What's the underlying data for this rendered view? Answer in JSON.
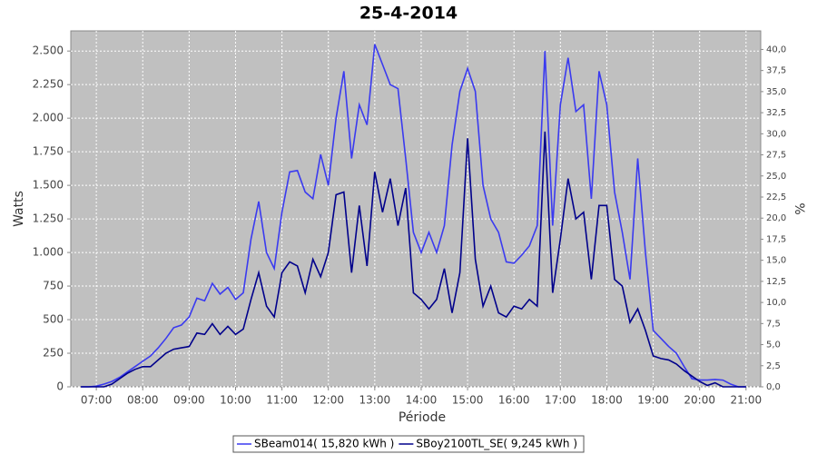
{
  "chart_data": {
    "type": "line",
    "title": "25-4-2014",
    "x_label": "Période",
    "y_label": "Watts",
    "y2_label": "%",
    "x": [
      "06:40",
      "06:50",
      "07:00",
      "07:10",
      "07:20",
      "07:30",
      "07:40",
      "07:50",
      "08:00",
      "08:10",
      "08:20",
      "08:30",
      "08:40",
      "08:50",
      "09:00",
      "09:10",
      "09:20",
      "09:30",
      "09:40",
      "09:50",
      "10:00",
      "10:10",
      "10:20",
      "10:30",
      "10:40",
      "10:50",
      "11:00",
      "11:10",
      "11:20",
      "11:30",
      "11:40",
      "11:50",
      "12:00",
      "12:10",
      "12:20",
      "12:30",
      "12:40",
      "12:50",
      "13:00",
      "13:10",
      "13:20",
      "13:30",
      "13:40",
      "13:50",
      "14:00",
      "14:10",
      "14:20",
      "14:30",
      "14:40",
      "14:50",
      "15:00",
      "15:10",
      "15:20",
      "15:30",
      "15:40",
      "15:50",
      "16:00",
      "16:10",
      "16:20",
      "16:30",
      "16:40",
      "16:50",
      "17:00",
      "17:10",
      "17:20",
      "17:30",
      "17:40",
      "17:50",
      "18:00",
      "18:10",
      "18:20",
      "18:30",
      "18:40",
      "18:50",
      "19:00",
      "19:10",
      "19:20",
      "19:30",
      "19:40",
      "19:50",
      "20:00",
      "20:10",
      "20:20",
      "20:30",
      "20:40",
      "20:50",
      "21:00"
    ],
    "series": [
      {
        "name": "SBeam014( 15,820 kWh )",
        "color": "#3a3af0",
        "values": [
          0,
          0,
          5,
          20,
          40,
          70,
          110,
          150,
          190,
          230,
          290,
          360,
          440,
          460,
          520,
          660,
          640,
          770,
          690,
          740,
          650,
          700,
          1100,
          1380,
          1000,
          880,
          1300,
          1600,
          1610,
          1450,
          1400,
          1730,
          1500,
          2000,
          2350,
          1700,
          2100,
          1950,
          2550,
          2400,
          2250,
          2220,
          1700,
          1150,
          1000,
          1150,
          1000,
          1200,
          1800,
          2200,
          2370,
          2200,
          1500,
          1250,
          1150,
          930,
          920,
          980,
          1050,
          1200,
          2500,
          1200,
          2100,
          2450,
          2050,
          2100,
          1400,
          2350,
          2100,
          1450,
          1150,
          800,
          1700,
          1000,
          420,
          360,
          300,
          250,
          150,
          60,
          50,
          50,
          55,
          50,
          20,
          0,
          0
        ]
      },
      {
        "name": "SBoy2100TL_SE( 9,245 kWh )",
        "color": "#00008b",
        "values": [
          0,
          0,
          0,
          0,
          20,
          60,
          100,
          130,
          150,
          150,
          200,
          250,
          280,
          290,
          300,
          400,
          390,
          470,
          390,
          450,
          390,
          430,
          650,
          850,
          600,
          520,
          850,
          930,
          900,
          700,
          950,
          820,
          1000,
          1430,
          1450,
          850,
          1350,
          900,
          1600,
          1300,
          1550,
          1200,
          1480,
          700,
          650,
          580,
          650,
          880,
          550,
          850,
          1850,
          950,
          600,
          750,
          550,
          520,
          600,
          580,
          650,
          600,
          1900,
          700,
          1100,
          1550,
          1250,
          1300,
          800,
          1350,
          1350,
          800,
          750,
          480,
          580,
          420,
          230,
          210,
          200,
          170,
          120,
          80,
          40,
          10,
          30,
          0,
          0,
          0,
          0
        ]
      }
    ],
    "xlim": [
      "06:27",
      "21:19"
    ],
    "xticks": [
      "07:00",
      "08:00",
      "09:00",
      "10:00",
      "11:00",
      "12:00",
      "13:00",
      "14:00",
      "15:00",
      "16:00",
      "17:00",
      "18:00",
      "19:00",
      "20:00",
      "21:00"
    ],
    "ylim": [
      0,
      2650
    ],
    "yticks": [
      0,
      250,
      500,
      750,
      {
        "value": 1000,
        "label": "1.000"
      },
      {
        "value": 1250,
        "label": "1.250"
      },
      {
        "value": 1500,
        "label": "1.500"
      },
      {
        "value": 1750,
        "label": "1.750"
      },
      {
        "value": 2000,
        "label": "2.000"
      },
      {
        "value": 2250,
        "label": "2.250"
      },
      {
        "value": 2500,
        "label": "2.500"
      }
    ],
    "y2lim": [
      0,
      42.2
    ],
    "y2ticks": [
      {
        "value": 0,
        "label": "0,0"
      },
      {
        "value": 2.5,
        "label": "2,5"
      },
      {
        "value": 5,
        "label": "5,0"
      },
      {
        "value": 7.5,
        "label": "7,5"
      },
      {
        "value": 10,
        "label": "10,0"
      },
      {
        "value": 12.5,
        "label": "12,5"
      },
      {
        "value": 15,
        "label": "15,0"
      },
      {
        "value": 17.5,
        "label": "17,5"
      },
      {
        "value": 20,
        "label": "20,0"
      },
      {
        "value": 22.5,
        "label": "22,5"
      },
      {
        "value": 25,
        "label": "25,0"
      },
      {
        "value": 27.5,
        "label": "27,5"
      },
      {
        "value": 30,
        "label": "30,0"
      },
      {
        "value": 32.5,
        "label": "32,5"
      },
      {
        "value": 35,
        "label": "35,0"
      },
      {
        "value": 37.5,
        "label": "37,5"
      },
      {
        "value": 40,
        "label": "40,0"
      }
    ],
    "grid": true,
    "plot_background": "#c0c0c0",
    "legend": "bottom"
  }
}
